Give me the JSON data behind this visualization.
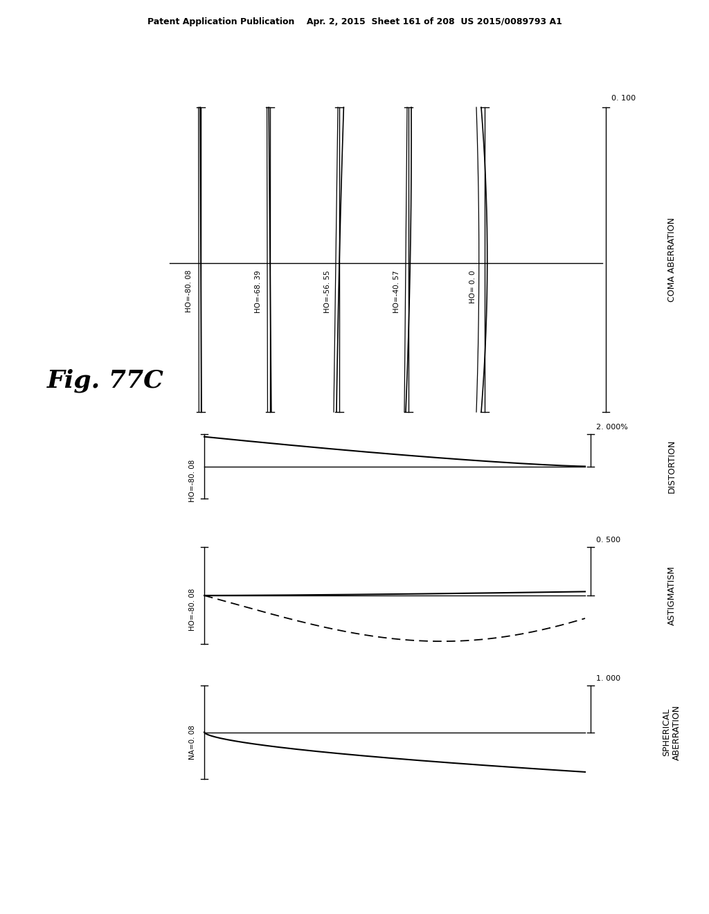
{
  "title_text": "Patent Application Publication    Apr. 2, 2015  Sheet 161 of 208  US 2015/0089793 A1",
  "fig_label": "Fig. 77C",
  "background_color": "#ffffff",
  "text_color": "#000000",
  "coma_labels": [
    "HO=-80. 08",
    "HO=-68. 39",
    "HO=-56. 55",
    "HO=-40. 57",
    "HO= 0. 0"
  ],
  "coma_scale": "0. 100",
  "coma_title": "COMA ABERRATION",
  "distortion_label": "HO=-80. 08",
  "distortion_scale": "2. 000%",
  "distortion_title": "DISTORTION",
  "astigmatism_label": "HO=-80. 08",
  "astigmatism_scale": "0. 500",
  "astigmatism_title": "ASTIGMATISM",
  "spherical_label": "NA=0. 08",
  "spherical_scale": "1. 000",
  "spherical_title": "SPHERICAL\nABERRATION"
}
